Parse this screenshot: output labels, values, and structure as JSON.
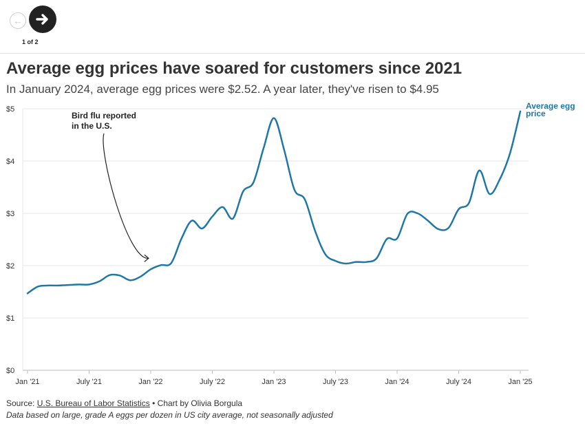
{
  "nav": {
    "prev_icon": "arrow-left-icon",
    "next_icon": "arrow-right-icon",
    "counter": "1 of 2"
  },
  "header": {
    "title": "Average egg prices have soared for customers since 2021",
    "subtitle": "In January 2024, average egg prices were $2.52. A year later, they've risen to $4.95"
  },
  "footer": {
    "source_prefix": "Source: ",
    "source_link": "U.S. Bureau of Labor Statistics",
    "source_suffix": " • Chart by Olivia Borgula",
    "note": "Data based on large, grade A eggs per dozen in US city average, not seasonally adjusted"
  },
  "chart_data": {
    "type": "line",
    "title": "Average egg prices have soared for customers since 2021",
    "subtitle": "In January 2024, average egg prices were $2.52. A year later, they've risen to $4.95",
    "xlabel": "",
    "ylabel": "",
    "x_range": [
      "2021-01",
      "2025-01"
    ],
    "ylim": [
      0,
      5
    ],
    "y_ticks": [
      0,
      1,
      2,
      3,
      4,
      5
    ],
    "y_tick_labels": [
      "$0",
      "$1",
      "$2",
      "$3",
      "$4",
      "$5"
    ],
    "x_ticks": [
      "2021-01",
      "2021-07",
      "2022-01",
      "2022-07",
      "2023-01",
      "2023-07",
      "2024-01",
      "2024-07",
      "2025-01"
    ],
    "x_tick_labels": [
      "Jan '21",
      "July '21",
      "Jan '22",
      "July '22",
      "Jan '23",
      "July '23",
      "Jan '24",
      "July '24",
      "Jan '25"
    ],
    "grid": true,
    "color": "#1f77a8",
    "series": [
      {
        "name": "Average egg price",
        "x": [
          "2021-01",
          "2021-02",
          "2021-03",
          "2021-04",
          "2021-05",
          "2021-06",
          "2021-07",
          "2021-08",
          "2021-09",
          "2021-10",
          "2021-11",
          "2021-12",
          "2022-01",
          "2022-02",
          "2022-03",
          "2022-04",
          "2022-05",
          "2022-06",
          "2022-07",
          "2022-08",
          "2022-09",
          "2022-10",
          "2022-11",
          "2022-12",
          "2023-01",
          "2023-02",
          "2023-03",
          "2023-04",
          "2023-05",
          "2023-06",
          "2023-07",
          "2023-08",
          "2023-09",
          "2023-10",
          "2023-11",
          "2023-12",
          "2024-01",
          "2024-02",
          "2024-03",
          "2024-04",
          "2024-05",
          "2024-06",
          "2024-07",
          "2024-08",
          "2024-09",
          "2024-10",
          "2024-11",
          "2024-12",
          "2025-01"
        ],
        "values": [
          1.47,
          1.6,
          1.62,
          1.62,
          1.63,
          1.64,
          1.64,
          1.7,
          1.82,
          1.81,
          1.72,
          1.79,
          1.93,
          2.01,
          2.05,
          2.52,
          2.86,
          2.71,
          2.94,
          3.12,
          2.9,
          3.42,
          3.59,
          4.25,
          4.82,
          4.21,
          3.45,
          3.27,
          2.67,
          2.22,
          2.09,
          2.04,
          2.07,
          2.07,
          2.14,
          2.51,
          2.52,
          2.99,
          3.0,
          2.86,
          2.7,
          2.72,
          3.08,
          3.2,
          3.82,
          3.37,
          3.65,
          4.15,
          4.95
        ]
      }
    ],
    "series_label": "Average egg price",
    "annotations": [
      {
        "text_lines": [
          "Bird flu reported",
          "in the U.S."
        ],
        "x": "2022-02",
        "y": 2.01
      }
    ]
  }
}
